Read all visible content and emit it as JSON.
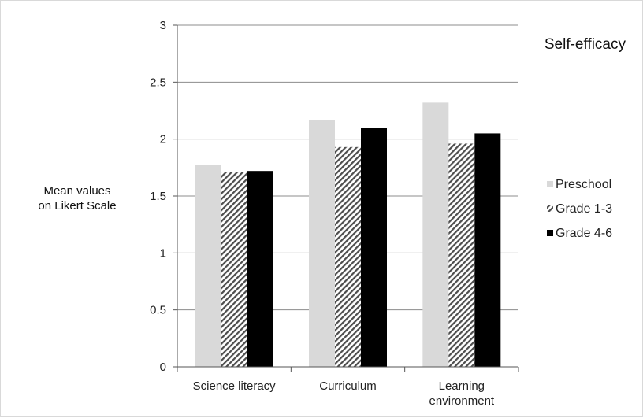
{
  "chart_data": {
    "type": "bar",
    "title": "Self-efficacy",
    "ylabel": [
      "Mean values",
      "on Likert Scale"
    ],
    "xlabel": "",
    "ylim": [
      0,
      3
    ],
    "yticks": [
      0,
      0.5,
      1,
      1.5,
      2,
      2.5,
      3
    ],
    "grid": true,
    "legend_position": "right",
    "categories": [
      [
        "Science literacy"
      ],
      [
        "Curriculum"
      ],
      [
        "Learning",
        "environment"
      ]
    ],
    "series": [
      {
        "name": "Preschool",
        "values": [
          1.77,
          2.17,
          2.32
        ],
        "color": "#d9d9d9",
        "pattern": "solid"
      },
      {
        "name": "Grade 1-3",
        "values": [
          1.71,
          1.93,
          1.96
        ],
        "color": "#4d4d4d",
        "pattern": "hatch"
      },
      {
        "name": "Grade 4-6",
        "values": [
          1.72,
          2.1,
          2.05
        ],
        "color": "#000000",
        "pattern": "solid"
      }
    ]
  }
}
